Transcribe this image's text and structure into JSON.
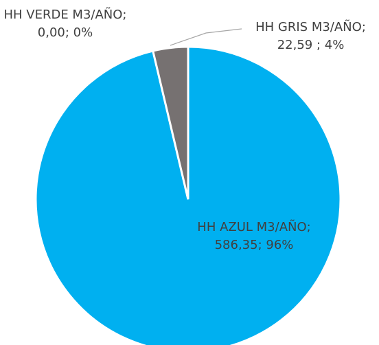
{
  "chart_data": {
    "type": "pie",
    "categories": [
      "HH AZUL M3/AÑO",
      "HH GRIS M3/AÑO",
      "HH VERDE M3/AÑO"
    ],
    "values": [
      586.35,
      22.59,
      0
    ],
    "value_labels": [
      "; 586,35;",
      "; 22,59 ;",
      "; 0,00;"
    ],
    "percents": [
      96,
      4,
      0
    ],
    "percent_labels": [
      "96%",
      "4%",
      "0%"
    ],
    "colors": [
      "#00b0f0",
      "#767171",
      "#00b050"
    ]
  }
}
